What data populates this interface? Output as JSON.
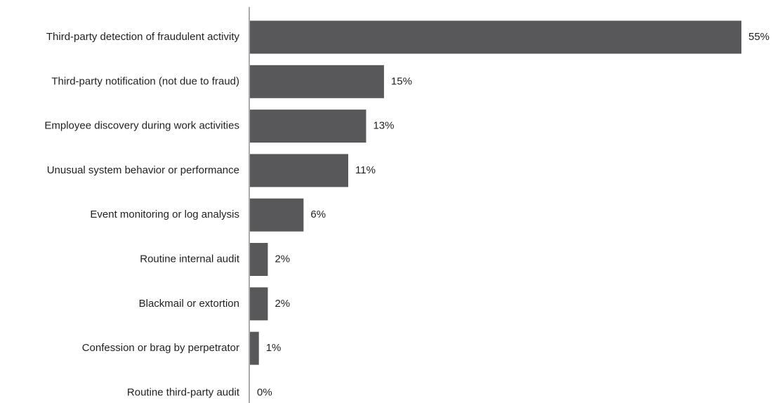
{
  "chart_data": {
    "type": "bar",
    "orientation": "horizontal",
    "categories": [
      "Third-party detection of fraudulent activity",
      "Third-party notification (not due to fraud)",
      "Employee discovery during work activities",
      "Unusual system behavior or performance",
      "Event monitoring or log analysis",
      "Routine  internal audit",
      "Blackmail or extortion",
      "Confession or brag by perpetrator",
      "Routine third-party audit"
    ],
    "values": [
      55,
      15,
      13,
      11,
      6,
      2,
      2,
      1,
      0
    ],
    "value_labels": [
      "55%",
      "15%",
      "13%",
      "11%",
      "6%",
      "2%",
      "2%",
      "1%",
      "0%"
    ],
    "unit": "%",
    "xlim": [
      0,
      55
    ],
    "grid": false,
    "legend": "none",
    "colors": {
      "bar": "#58585a",
      "axis": "#58585a",
      "text": "#231f20"
    }
  }
}
